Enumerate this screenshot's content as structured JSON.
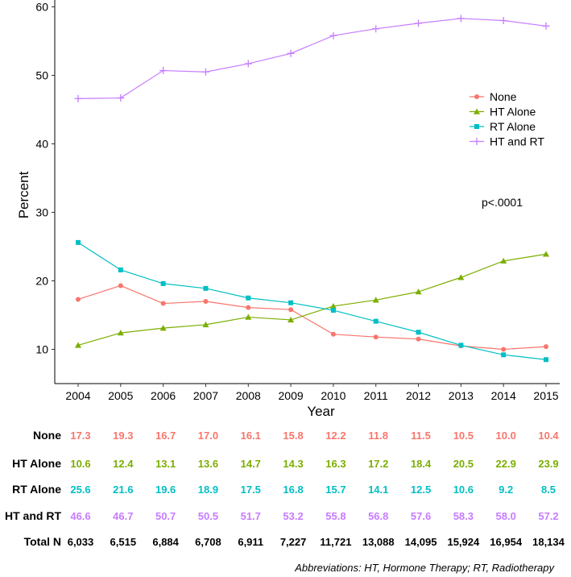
{
  "chart_data": {
    "type": "line",
    "title": "",
    "xlabel": "Year",
    "ylabel": "Percent",
    "x": [
      2004,
      2005,
      2006,
      2007,
      2008,
      2009,
      2010,
      2011,
      2012,
      2013,
      2014,
      2015
    ],
    "x_tick_labels": [
      "2004",
      "2005",
      "2006",
      "2007",
      "2008",
      "2009",
      "2010",
      "2011",
      "2012",
      "2013",
      "2014",
      "2015"
    ],
    "ylim": [
      5,
      61
    ],
    "y_ticks": [
      10,
      20,
      30,
      40,
      50,
      60
    ],
    "y_tick_labels": [
      "10",
      "20",
      "30",
      "40",
      "50",
      "60"
    ],
    "grid": false,
    "legend_position": "top-right",
    "annotation": "p<.0001",
    "series": [
      {
        "name": "None",
        "color": "#f8766d",
        "marker": "circle",
        "values": [
          17.3,
          19.3,
          16.7,
          17.0,
          16.1,
          15.8,
          12.2,
          11.8,
          11.5,
          10.5,
          10.0,
          10.4
        ],
        "labels": [
          "17.3",
          "19.3",
          "16.7",
          "17.0",
          "16.1",
          "15.8",
          "12.2",
          "11.8",
          "11.5",
          "10.5",
          "10.0",
          "10.4"
        ]
      },
      {
        "name": "HT Alone",
        "color": "#7cae00",
        "marker": "triangle",
        "values": [
          10.6,
          12.4,
          13.1,
          13.6,
          14.7,
          14.3,
          16.3,
          17.2,
          18.4,
          20.5,
          22.9,
          23.9
        ],
        "labels": [
          "10.6",
          "12.4",
          "13.1",
          "13.6",
          "14.7",
          "14.3",
          "16.3",
          "17.2",
          "18.4",
          "20.5",
          "22.9",
          "23.9"
        ]
      },
      {
        "name": "RT Alone",
        "color": "#00bfc4",
        "marker": "square",
        "values": [
          25.6,
          21.6,
          19.6,
          18.9,
          17.5,
          16.8,
          15.7,
          14.1,
          12.5,
          10.6,
          9.2,
          8.5
        ],
        "labels": [
          "25.6",
          "21.6",
          "19.6",
          "18.9",
          "17.5",
          "16.8",
          "15.7",
          "14.1",
          "12.5",
          "10.6",
          "9.2",
          "8.5"
        ]
      },
      {
        "name": "HT and RT",
        "color": "#c77cff",
        "marker": "plus",
        "values": [
          46.6,
          46.7,
          50.7,
          50.5,
          51.7,
          53.2,
          55.8,
          56.8,
          57.6,
          58.3,
          58.0,
          57.2
        ],
        "labels": [
          "46.6",
          "46.7",
          "50.7",
          "50.5",
          "51.7",
          "53.2",
          "55.8",
          "56.8",
          "57.6",
          "58.3",
          "58.0",
          "57.2"
        ]
      }
    ],
    "table": {
      "total_label": "Total N",
      "total_values": [
        "6,033",
        "6,515",
        "6,884",
        "6,708",
        "6,911",
        "7,227",
        "11,721",
        "13,088",
        "14,095",
        "15,924",
        "16,954",
        "18,134"
      ]
    },
    "footnote": "Abbreviations: HT, Hormone Therapy; RT, Radiotherapy"
  }
}
